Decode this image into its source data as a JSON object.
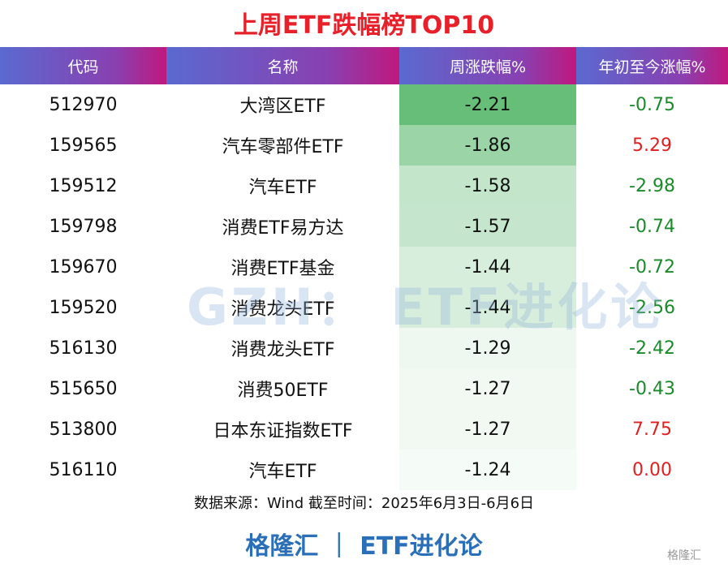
{
  "title": "上周ETF跌幅榜TOP10",
  "table": {
    "header": [
      "代码",
      "名称",
      "周涨跌幅%",
      "年初至今涨幅%"
    ],
    "rows": [
      [
        "512970",
        "大湾区ETF",
        "-2.21",
        "-0.75"
      ],
      [
        "159565",
        "汽车零部件ETF",
        "-1.86",
        "5.29"
      ],
      [
        "159512",
        "汽车ETF",
        "-1.58",
        "-2.98"
      ],
      [
        "159798",
        "消费ETF易方达",
        "-1.57",
        "-0.74"
      ],
      [
        "159670",
        "消费ETF基金",
        "-1.44",
        "-0.72"
      ],
      [
        "159520",
        "消费龙头ETF",
        "-1.44",
        "-2.56"
      ],
      [
        "516130",
        "消费龙头ETF",
        "-1.29",
        "-2.42"
      ],
      [
        "515650",
        "消费50ETF",
        "-1.27",
        "-0.43"
      ],
      [
        "513800",
        "日本东证指数ETF",
        "-1.27",
        "7.75"
      ],
      [
        "516110",
        "汽车ETF",
        "-1.24",
        "0.00"
      ]
    ]
  },
  "source": "数据来源：Wind 截至时间：2025年6月3日-6月6日",
  "footer": "格隆汇 ｜ ETF进化论",
  "watermark": "GZH： ETF进化论",
  "logo": "格隆汇"
}
